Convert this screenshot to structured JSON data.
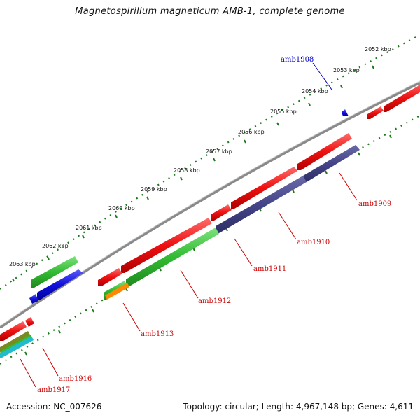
{
  "title": "Magnetospirillum magneticum AMB-1, complete genome",
  "footer": {
    "accession": "Accession: NC_007626",
    "summary": "Topology: circular; Length: 4,967,148 bp; Genes: 4,611"
  },
  "ticks": [
    "2052 kbp",
    "2053 kbp",
    "2054 kbp",
    "2055 kbp",
    "2056 kbp",
    "2057 kbp",
    "2058 kbp",
    "2059 kbp",
    "2060 kbp",
    "2061 kbp",
    "2062 kbp",
    "2063 kbp"
  ],
  "gene_labels": [
    {
      "name": "amb1908",
      "color": "#0000cc"
    },
    {
      "name": "amb1909",
      "color": "#cc0000"
    },
    {
      "name": "amb1910",
      "color": "#cc0000"
    },
    {
      "name": "amb1911",
      "color": "#cc0000"
    },
    {
      "name": "amb1912",
      "color": "#cc0000"
    },
    {
      "name": "amb1913",
      "color": "#cc0000"
    },
    {
      "name": "amb1916",
      "color": "#cc0000"
    },
    {
      "name": "amb1917",
      "color": "#cc0000"
    }
  ],
  "colors": {
    "backbone": "#8a8a8a",
    "tick_green": "#1a7a1a",
    "red": "#ee1111",
    "green": "#33bb33",
    "blue": "#1111dd",
    "navy": "#444488",
    "orange": "#ff8800",
    "olive": "#7a8a20",
    "cyan": "#22bbcc"
  }
}
